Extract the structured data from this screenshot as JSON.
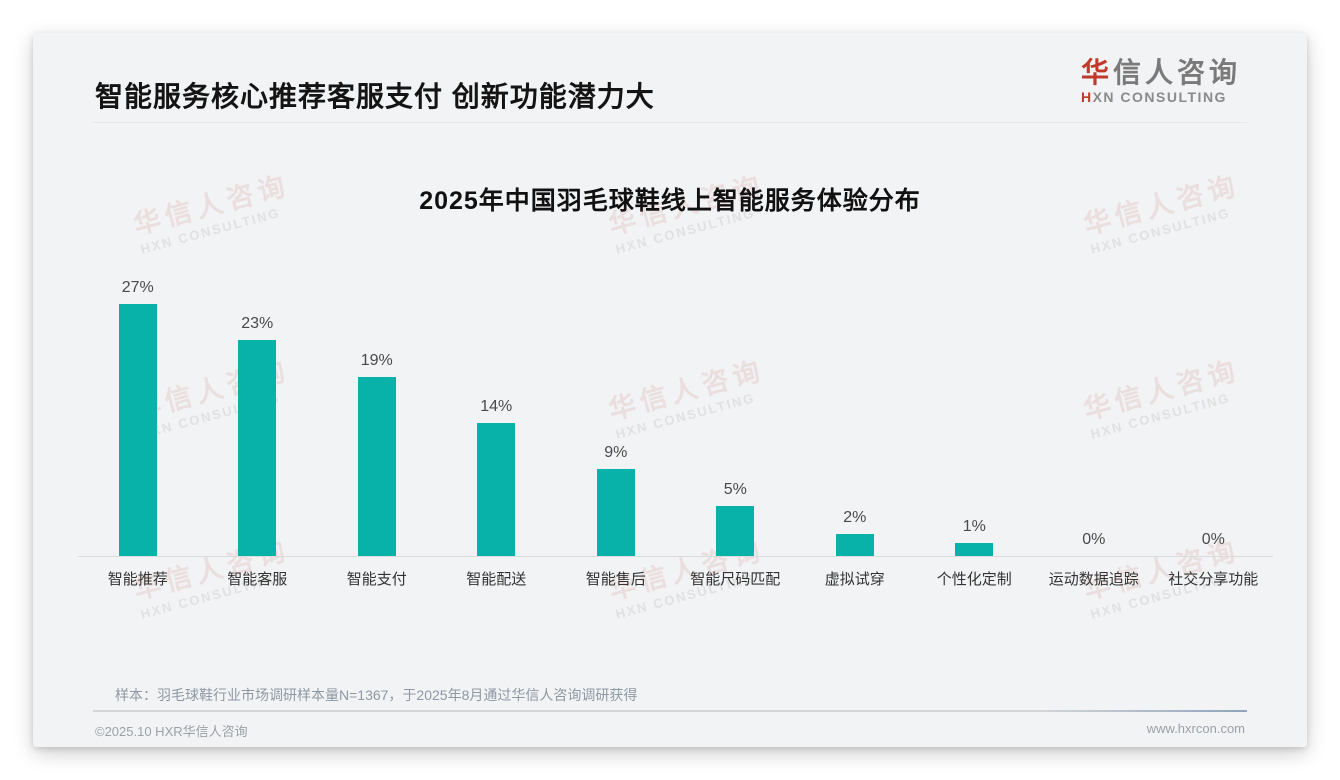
{
  "page": {
    "header": {
      "title": "智能服务核心推荐客服支付 创新功能潜力大"
    },
    "logo": {
      "zh_first": "华",
      "zh_rest": "信人咨询",
      "en_first": "H",
      "en_rest": "XN CONSULTING"
    },
    "watermark": {
      "zh": "华信人咨询",
      "en": "HXN CONSULTING"
    },
    "footer": {
      "note": "样本：羽毛球鞋行业市场调研样本量N=1367，于2025年8月通过华信人咨询调研获得",
      "copyright": "©2025.10 HXR华信人咨询",
      "website": "www.hxrcon.com"
    },
    "colors": {
      "brand_red": "#c0392b",
      "bar_teal": "#09b2a8"
    }
  },
  "chart_data": {
    "type": "bar",
    "title": "2025年中国羽毛球鞋线上智能服务体验分布",
    "categories": [
      "智能推荐",
      "智能客服",
      "智能支付",
      "智能配送",
      "智能售后",
      "智能尺码匹配",
      "虚拟试穿",
      "个性化定制",
      "运动数据追踪",
      "社交分享功能"
    ],
    "values": [
      27,
      23,
      19,
      14,
      9,
      5,
      2,
      1,
      0,
      0
    ],
    "unit": "%",
    "value_label_suffix": "%",
    "xlabel": "",
    "ylabel": "",
    "ylim": [
      0,
      30
    ],
    "grid": false,
    "legend": "none",
    "bar_color": "#09b2a8"
  }
}
